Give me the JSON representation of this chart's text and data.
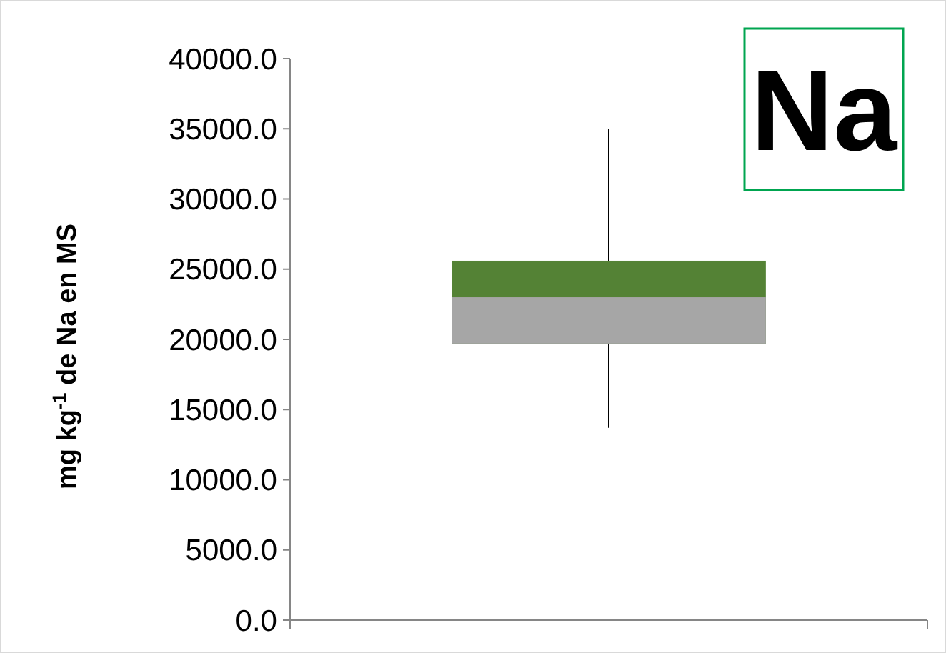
{
  "chart_data": {
    "type": "box",
    "ylabel": "mg kg$^{-1}$ de Na en MS",
    "annotations": [
      "Na"
    ],
    "categories": [
      null
    ],
    "series": [
      {
        "color": "#548235",
        "boxes": [
          {
            "low": 13700,
            "q1": 19700,
            "median": 23000,
            "q3": 25600,
            "high": 35000
          }
        ]
      }
    ],
    "ylim": [
      0,
      40000
    ],
    "yticks": [
      {
        "value": 0,
        "label": "0.0"
      },
      {
        "value": 5000,
        "label": "5000.0"
      },
      {
        "value": 10000,
        "label": "10000.0"
      },
      {
        "value": 15000,
        "label": "15000.0"
      },
      {
        "value": 20000,
        "label": "20000.0"
      },
      {
        "value": 25000,
        "label": "25000.0"
      },
      {
        "value": 30000,
        "label": "30000.0"
      },
      {
        "value": 35000,
        "label": "35000.0"
      },
      {
        "value": 40000,
        "label": "40000.0"
      }
    ],
    "grid": false
  }
}
